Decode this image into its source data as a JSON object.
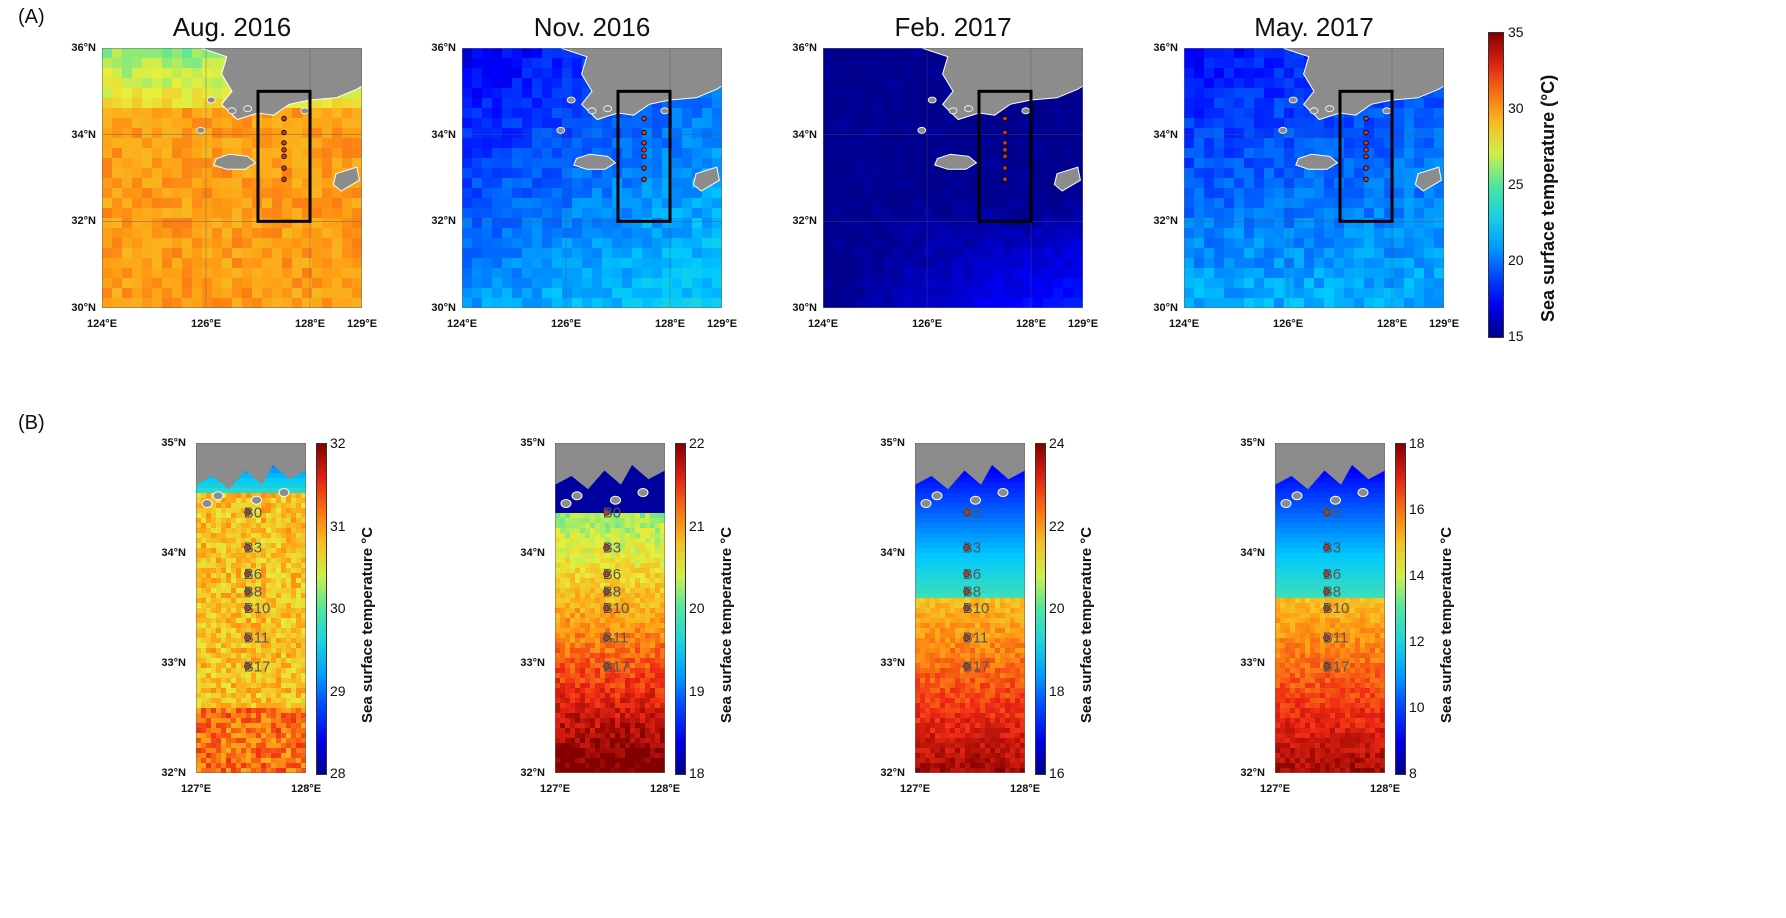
{
  "figure": {
    "panel_a_label": "(A)",
    "panel_b_label": "(B)"
  },
  "panel_a": {
    "colorbar": {
      "title": "Sea surface temperature (°C)",
      "ticks": [
        "35",
        "30",
        "25",
        "20",
        "15"
      ],
      "range": [
        15,
        35
      ]
    },
    "lat_ticks": [
      "36°N",
      "34°N",
      "32°N",
      "30°N"
    ],
    "lon_ticks": [
      "124°E",
      "126°E",
      "128°E",
      "129°E"
    ],
    "maps": [
      {
        "title": "Aug. 2016",
        "base_temp": 30
      },
      {
        "title": "Nov. 2016",
        "base_temp": 21
      },
      {
        "title": "Feb. 2017",
        "base_temp": 15
      },
      {
        "title": "May. 2017",
        "base_temp": 19
      }
    ],
    "study_box": {
      "lon_range": [
        127.0,
        128.0
      ],
      "lat_range": [
        32.0,
        35.0
      ]
    }
  },
  "panel_b": {
    "lat_ticks": [
      "35°N",
      "34°N",
      "33°N",
      "32°N"
    ],
    "lon_ticks": [
      "127°E",
      "128°E"
    ],
    "colorbar_title": "Sea surface temperature °C",
    "stations": [
      {
        "name": "B0",
        "lat": 34.37
      },
      {
        "name": "B3",
        "lat": 34.05
      },
      {
        "name": "B6",
        "lat": 33.81
      },
      {
        "name": "B8",
        "lat": 33.65
      },
      {
        "name": "B10",
        "lat": 33.5
      },
      {
        "name": "B11",
        "lat": 33.23
      },
      {
        "name": "B17",
        "lat": 32.97
      }
    ],
    "maps": [
      {
        "colorbar_ticks": [
          "32",
          "31",
          "30",
          "29",
          "28"
        ],
        "range": [
          28,
          32
        ]
      },
      {
        "colorbar_ticks": [
          "22",
          "21",
          "20",
          "19",
          "18"
        ],
        "range": [
          18,
          22
        ]
      },
      {
        "colorbar_ticks": [
          "24",
          "22",
          "20",
          "18",
          "16"
        ],
        "range": [
          16,
          24
        ]
      },
      {
        "colorbar_ticks": [
          "18",
          "16",
          "14",
          "12",
          "10",
          "8"
        ],
        "range": [
          8,
          18
        ]
      }
    ]
  }
}
